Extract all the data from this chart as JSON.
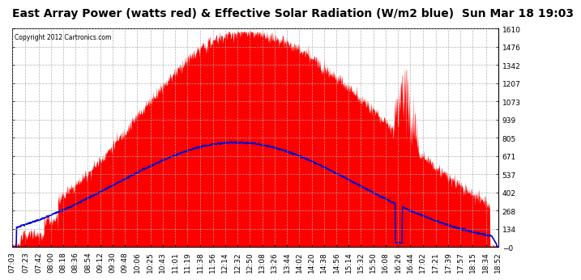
{
  "title": "East Array Power (watts red) & Effective Solar Radiation (W/m2 blue)  Sun Mar 18 19:03",
  "copyright": "Copyright 2012 Cartronics.com",
  "background_color": "#ffffff",
  "plot_bg_color": "#ffffff",
  "grid_color": "#aaaaaa",
  "ylim": [
    -0.1,
    1609.9
  ],
  "yticks": [
    -0.1,
    134.1,
    268.3,
    402.4,
    536.6,
    670.7,
    804.9,
    939.1,
    1073.2,
    1207.4,
    1341.6,
    1475.7,
    1609.9
  ],
  "xtick_labels": [
    "07:03",
    "07:23",
    "07:42",
    "08:00",
    "08:18",
    "08:36",
    "08:54",
    "09:12",
    "09:30",
    "09:48",
    "10:06",
    "10:25",
    "10:43",
    "11:01",
    "11:19",
    "11:38",
    "11:56",
    "12:14",
    "12:32",
    "12:50",
    "13:08",
    "13:26",
    "13:44",
    "14:02",
    "14:20",
    "14:38",
    "14:56",
    "15:14",
    "15:32",
    "15:50",
    "16:08",
    "16:26",
    "16:44",
    "17:02",
    "17:21",
    "17:39",
    "17:57",
    "18:15",
    "18:34",
    "18:52"
  ],
  "power_color": "#ff0000",
  "solar_color": "#0000cc",
  "title_fontsize": 10,
  "tick_fontsize": 6.5,
  "solar_peak": 780,
  "solar_peak_value": 780,
  "solar_sigma": 175
}
